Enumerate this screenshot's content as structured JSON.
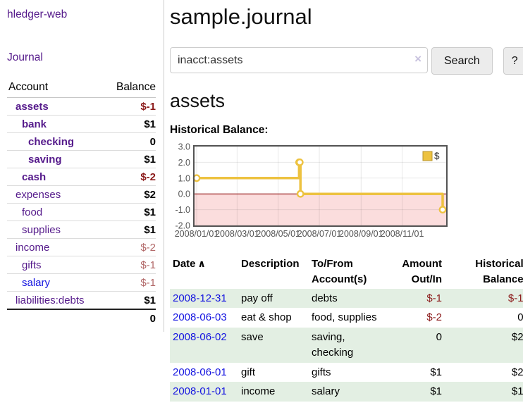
{
  "colors": {
    "link_purple": "#551a8b",
    "link_blue": "#1414e0",
    "negative_strong": "#8b1a1a",
    "negative_muted": "#b26868",
    "row_green": "#e3efe3"
  },
  "app": {
    "brand": "hledger-web",
    "nav_journal": "Journal"
  },
  "sidebar": {
    "header": {
      "account": "Account",
      "balance": "Balance"
    },
    "accounts": [
      {
        "name": "assets",
        "balance": "$-1",
        "depth": 0,
        "bold": true,
        "neg": "strong"
      },
      {
        "name": "bank",
        "balance": "$1",
        "depth": 1,
        "bold": true
      },
      {
        "name": "checking",
        "balance": "0",
        "depth": 2,
        "bold": true
      },
      {
        "name": "saving",
        "balance": "$1",
        "depth": 2,
        "bold": true
      },
      {
        "name": "cash",
        "balance": "$-2",
        "depth": 1,
        "bold": true,
        "neg": "strong"
      },
      {
        "name": "expenses",
        "balance": "$2",
        "depth": 0
      },
      {
        "name": "food",
        "balance": "$1",
        "depth": 1
      },
      {
        "name": "supplies",
        "balance": "$1",
        "depth": 1
      },
      {
        "name": "income",
        "balance": "$-2",
        "depth": 0,
        "neg": "muted"
      },
      {
        "name": "gifts",
        "balance": "$-1",
        "depth": 1,
        "neg": "muted"
      },
      {
        "name": "salary",
        "balance": "$-1",
        "depth": 1,
        "neg": "muted",
        "blue": true
      },
      {
        "name": "liabilities:debts",
        "balance": "$1",
        "depth": 0
      }
    ],
    "total": "0"
  },
  "main": {
    "title": "sample.journal",
    "search": {
      "value": "inacct:assets",
      "clear_icon": "×",
      "button_label": "Search",
      "help_label": "?"
    },
    "account_heading": "assets",
    "chart_label": "Historical Balance:"
  },
  "chart_data": {
    "type": "line",
    "step": true,
    "title": "Historical Balance:",
    "series": [
      {
        "name": "$",
        "color": "#edc240",
        "points": [
          [
            "2008-01-01",
            1
          ],
          [
            "2008-06-01",
            2
          ],
          [
            "2008-06-02",
            2
          ],
          [
            "2008-06-03",
            0
          ],
          [
            "2008-12-31",
            -1
          ]
        ]
      }
    ],
    "ylim": [
      -2,
      3
    ],
    "yticks": [
      3,
      2,
      1,
      0,
      -1,
      -2
    ],
    "xticks": [
      "2008/01/01",
      "2008/03/01",
      "2008/05/01",
      "2008/07/01",
      "2008/09/01",
      "2008/11/01"
    ],
    "xrange": [
      "2008-01-01",
      "2008-12-31"
    ],
    "legend_position": "top-right",
    "grid": true,
    "colors": {
      "negative_region": "#fbdddd",
      "zero_line": "#8b0000",
      "border": "#545454",
      "grid": "rgba(0,0,0,0.09)",
      "tick_text": "#545454"
    }
  },
  "register": {
    "headers": {
      "date": "Date",
      "description": "Description",
      "accounts": "To/From Account(s)",
      "amount": "Amount Out/In",
      "balance": "Historical Balance"
    },
    "sort_icon": "∧",
    "rows": [
      {
        "date": "2008-12-31",
        "description": "pay off",
        "accounts": "debts",
        "amount": "$-1",
        "balance": "$-1"
      },
      {
        "date": "2008-06-03",
        "description": "eat & shop",
        "accounts": "food, supplies",
        "amount": "$-2",
        "balance": "0"
      },
      {
        "date": "2008-06-02",
        "description": "save",
        "accounts": "saving, checking",
        "amount": "0",
        "balance": "$2"
      },
      {
        "date": "2008-06-01",
        "description": "gift",
        "accounts": "gifts",
        "amount": "$1",
        "balance": "$2"
      },
      {
        "date": "2008-01-01",
        "description": "income",
        "accounts": "salary",
        "amount": "$1",
        "balance": "$1"
      }
    ]
  }
}
